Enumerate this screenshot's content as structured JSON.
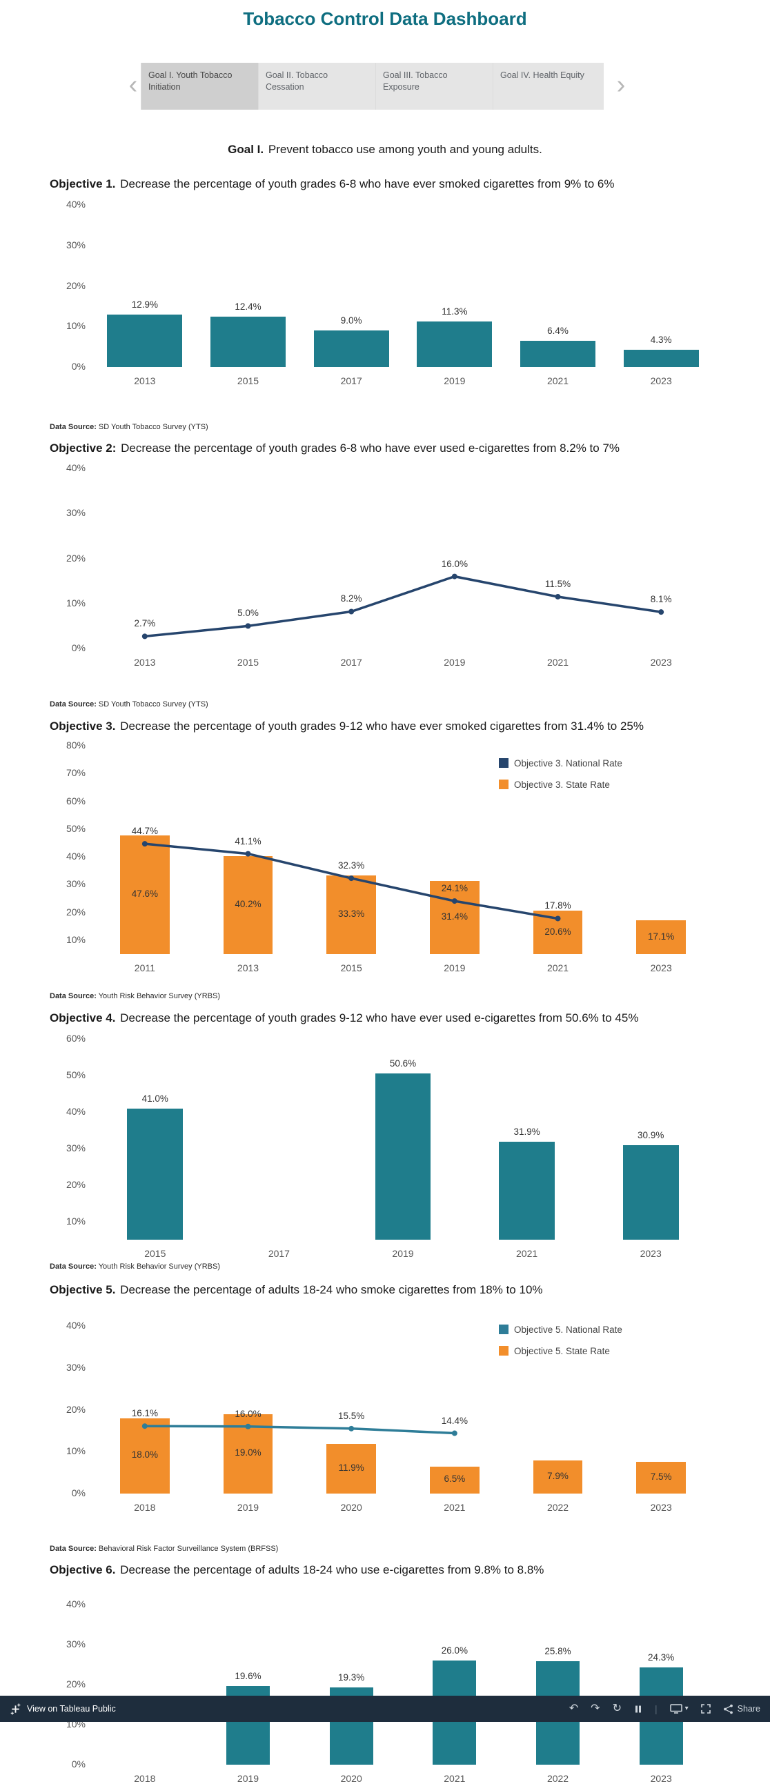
{
  "page": {
    "title": "Tobacco Control Data Dashboard",
    "goal_label": "Goal I.",
    "goal_text": "Prevent tobacco use among youth and young adults."
  },
  "tabs": {
    "prev_icon": "‹",
    "next_icon": "›",
    "items": [
      {
        "label": "Goal I. Youth Tobacco Initiation",
        "active": true
      },
      {
        "label": "Goal II. Tobacco Cessation",
        "active": false
      },
      {
        "label": "Goal III. Tobacco Exposure",
        "active": false
      },
      {
        "label": "Goal IV. Health Equity",
        "active": false
      }
    ]
  },
  "colors": {
    "teal": "#1f7d8c",
    "orange": "#f28e2b",
    "navy": "#26456d",
    "teal_line": "#2e7d98",
    "title_teal": "#0e6e80",
    "footer_bg": "#1e2d3d"
  },
  "chart_data": [
    {
      "id": "obj1",
      "type": "bar",
      "objective_label": "Objective 1.",
      "objective_text": "Decrease the percentage of youth grades 6-8 who have ever smoked cigarettes from 9% to 6%",
      "data_source_label": "Data Source:",
      "data_source": "SD Youth Tobacco Survey (YTS)",
      "categories": [
        "2013",
        "2015",
        "2017",
        "2019",
        "2021",
        "2023"
      ],
      "ylim": [
        0,
        40
      ],
      "yticks": [
        0,
        10,
        20,
        30,
        40
      ],
      "grid": false,
      "series": [
        {
          "name": "State Rate",
          "type": "bar",
          "color": "#1f7d8c",
          "bar_width": 0.73,
          "label_position": "above",
          "values": [
            12.9,
            12.4,
            9.0,
            11.3,
            6.4,
            4.3
          ]
        }
      ],
      "legend": null
    },
    {
      "id": "obj2",
      "type": "line",
      "objective_label": "Objective 2:",
      "objective_text": "Decrease the percentage of youth grades 6-8 who have ever used e-cigarettes from 8.2% to 7%",
      "data_source_label": "Data Source:",
      "data_source": "SD Youth Tobacco Survey (YTS)",
      "categories": [
        "2013",
        "2015",
        "2017",
        "2019",
        "2021",
        "2023"
      ],
      "ylim": [
        0,
        40
      ],
      "yticks": [
        0,
        10,
        20,
        30,
        40
      ],
      "grid": false,
      "series": [
        {
          "name": "State Rate",
          "type": "line",
          "color": "#26456d",
          "values": [
            2.7,
            5.0,
            8.2,
            16.0,
            11.5,
            8.1
          ]
        }
      ],
      "legend": null
    },
    {
      "id": "obj3",
      "type": "combo",
      "objective_label": "Objective 3.",
      "objective_text": "Decrease the percentage of youth grades 9-12 who have ever smoked cigarettes from 31.4% to 25%",
      "data_source_label": "Data Source:",
      "data_source": "Youth Risk Behavior Survey (YRBS)",
      "categories": [
        "2011",
        "2013",
        "2015",
        "2019",
        "2021",
        "2023"
      ],
      "ylim": [
        5,
        80
      ],
      "yticks": [
        10,
        20,
        30,
        40,
        50,
        60,
        70,
        80
      ],
      "grid": false,
      "series": [
        {
          "name": "Objective 3. State Rate",
          "type": "bar",
          "color": "#f28e2b",
          "bar_width": 0.48,
          "label_position": "inside",
          "values": [
            47.6,
            40.2,
            33.3,
            31.4,
            20.6,
            17.1
          ]
        },
        {
          "name": "Objective 3. National Rate",
          "type": "line",
          "color": "#26456d",
          "values": [
            44.7,
            41.1,
            32.3,
            24.1,
            17.8,
            null
          ]
        }
      ],
      "legend": {
        "position": "top-right",
        "items": [
          {
            "label": "Objective 3. National Rate",
            "color": "#26456d"
          },
          {
            "label": "Objective 3. State Rate",
            "color": "#f28e2b"
          }
        ]
      }
    },
    {
      "id": "obj4",
      "type": "bar",
      "objective_label": "Objective 4.",
      "objective_text": "Decrease the percentage of youth grades 9-12 who have ever used e-cigarettes from 50.6% to 45%",
      "data_source_label": "Data Source:",
      "data_source": "Youth Risk Behavior Survey (YRBS)",
      "categories": [
        "2015",
        "2017",
        "2019",
        "2021",
        "2023"
      ],
      "ylim": [
        5,
        60
      ],
      "yticks": [
        10,
        20,
        30,
        40,
        50,
        60
      ],
      "grid": false,
      "series": [
        {
          "name": "State Rate",
          "type": "bar",
          "color": "#1f7d8c",
          "bar_width": 0.45,
          "label_position": "above",
          "values": [
            41.0,
            null,
            50.6,
            31.9,
            30.9
          ]
        }
      ],
      "legend": null
    },
    {
      "id": "obj5",
      "type": "combo",
      "objective_label": "Objective 5.",
      "objective_text": "Decrease the percentage of adults 18-24 who smoke cigarettes from 18% to 10%",
      "data_source_label": "Data Source:",
      "data_source": "Behavioral Risk Factor Surveillance System (BRFSS)",
      "categories": [
        "2018",
        "2019",
        "2020",
        "2021",
        "2022",
        "2023"
      ],
      "ylim": [
        0,
        40
      ],
      "yticks": [
        0,
        10,
        20,
        30,
        40
      ],
      "grid": false,
      "series": [
        {
          "name": "Objective 5. State Rate",
          "type": "bar",
          "color": "#f28e2b",
          "bar_width": 0.48,
          "label_position": "inside",
          "values": [
            18.0,
            19.0,
            11.9,
            6.5,
            7.9,
            7.5
          ]
        },
        {
          "name": "Objective 5. National Rate",
          "type": "line",
          "color": "#2e7d98",
          "values": [
            16.1,
            16.0,
            15.5,
            14.4,
            null,
            null
          ]
        }
      ],
      "legend": {
        "position": "top-right",
        "items": [
          {
            "label": "Objective 5. National Rate",
            "color": "#2e7d98"
          },
          {
            "label": "Objective 5. State Rate",
            "color": "#f28e2b"
          }
        ]
      }
    },
    {
      "id": "obj6",
      "type": "bar",
      "objective_label": "Objective 6.",
      "objective_text": "Decrease the percentage of adults 18-24 who use e-cigarettes from 9.8% to 8.8%",
      "categories": [
        "2018",
        "2019",
        "2020",
        "2021",
        "2022",
        "2023"
      ],
      "ylim": [
        0,
        40
      ],
      "yticks": [
        0,
        10,
        20,
        30,
        40
      ],
      "grid": false,
      "clipped_by_page_bottom": true,
      "series": [
        {
          "name": "State Rate",
          "type": "bar",
          "color": "#1f7d8c",
          "bar_width": 0.42,
          "label_position": "above",
          "values": [
            null,
            19.6,
            19.3,
            26.0,
            25.8,
            24.3
          ]
        }
      ],
      "legend": null
    }
  ],
  "footer": {
    "view_label": "View on Tableau Public",
    "share_label": "Share",
    "icons": [
      "tableau-logo",
      "undo-icon",
      "redo-icon",
      "replay-icon",
      "pause-icon",
      "device-preview-icon",
      "caret-down-icon",
      "fullscreen-icon",
      "share-icon"
    ]
  }
}
